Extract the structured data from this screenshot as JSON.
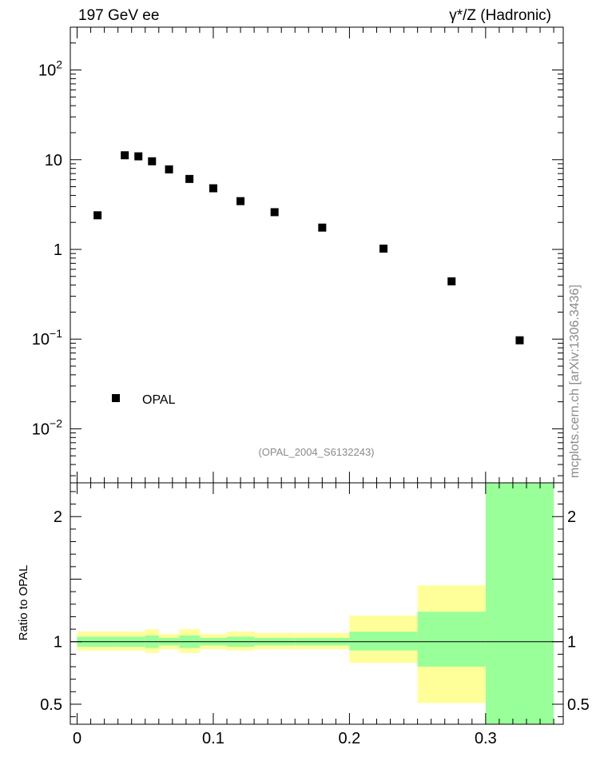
{
  "header": {
    "left_title": "197 GeV ee",
    "right_title": "γ*/Z (Hadronic)"
  },
  "side_label": "mcplots.cern.ch [arXiv:1306.3436]",
  "analysis_label": "(OPAL_2004_S6132243)",
  "colors": {
    "band_inner": "#99ff99",
    "band_outer": "#ffff99",
    "marker": "#000000",
    "analysis_label": "#8a8a8a"
  },
  "chart_data": [
    {
      "type": "scatter",
      "log_y": true,
      "xlim": [
        -0.005,
        0.357
      ],
      "ylim": [
        0.0025,
        300
      ],
      "y_tick_labels": [
        "10^-2",
        "10^-1",
        "1",
        "10",
        "10^2"
      ],
      "grid": false,
      "legend_position": "bottom-left",
      "series": [
        {
          "name": "OPAL",
          "x": [
            0.015,
            0.035,
            0.045,
            0.055,
            0.0675,
            0.0825,
            0.1,
            0.12,
            0.145,
            0.18,
            0.225,
            0.275,
            0.325
          ],
          "y": [
            2.4,
            11.2,
            10.9,
            9.6,
            7.8,
            6.1,
            4.8,
            3.45,
            2.6,
            1.75,
            1.02,
            0.44,
            0.097
          ]
        }
      ]
    },
    {
      "type": "area",
      "ylabel": "Ratio to OPAL",
      "xlim": [
        -0.005,
        0.357
      ],
      "ylim": [
        0.34,
        2.27
      ],
      "x_tick_labels": [
        "0",
        "0.1",
        "0.2",
        "0.3"
      ],
      "y_tick_labels": [
        "0.5",
        "1",
        "2"
      ],
      "reference_line": 1,
      "bins": [
        {
          "x0": 0.0,
          "x1": 0.03,
          "outer": [
            0.93,
            1.08
          ],
          "inner": [
            0.96,
            1.04
          ]
        },
        {
          "x0": 0.03,
          "x1": 0.05,
          "outer": [
            0.93,
            1.08
          ],
          "inner": [
            0.96,
            1.04
          ]
        },
        {
          "x0": 0.05,
          "x1": 0.06,
          "outer": [
            0.91,
            1.1
          ],
          "inner": [
            0.95,
            1.05
          ]
        },
        {
          "x0": 0.06,
          "x1": 0.075,
          "outer": [
            0.94,
            1.06
          ],
          "inner": [
            0.97,
            1.03
          ]
        },
        {
          "x0": 0.075,
          "x1": 0.09,
          "outer": [
            0.91,
            1.1
          ],
          "inner": [
            0.95,
            1.05
          ]
        },
        {
          "x0": 0.09,
          "x1": 0.11,
          "outer": [
            0.94,
            1.06
          ],
          "inner": [
            0.97,
            1.03
          ]
        },
        {
          "x0": 0.11,
          "x1": 0.13,
          "outer": [
            0.93,
            1.08
          ],
          "inner": [
            0.96,
            1.04
          ]
        },
        {
          "x0": 0.13,
          "x1": 0.16,
          "outer": [
            0.94,
            1.07
          ],
          "inner": [
            0.97,
            1.03
          ]
        },
        {
          "x0": 0.16,
          "x1": 0.2,
          "outer": [
            0.94,
            1.07
          ],
          "inner": [
            0.97,
            1.03
          ]
        },
        {
          "x0": 0.2,
          "x1": 0.25,
          "outer": [
            0.83,
            1.21
          ],
          "inner": [
            0.93,
            1.08
          ]
        },
        {
          "x0": 0.25,
          "x1": 0.3,
          "outer": [
            0.51,
            1.45
          ],
          "inner": [
            0.8,
            1.24
          ]
        },
        {
          "x0": 0.3,
          "x1": 0.35,
          "outer": [
            0.34,
            2.27
          ],
          "inner": [
            0.34,
            2.27
          ]
        }
      ]
    }
  ]
}
